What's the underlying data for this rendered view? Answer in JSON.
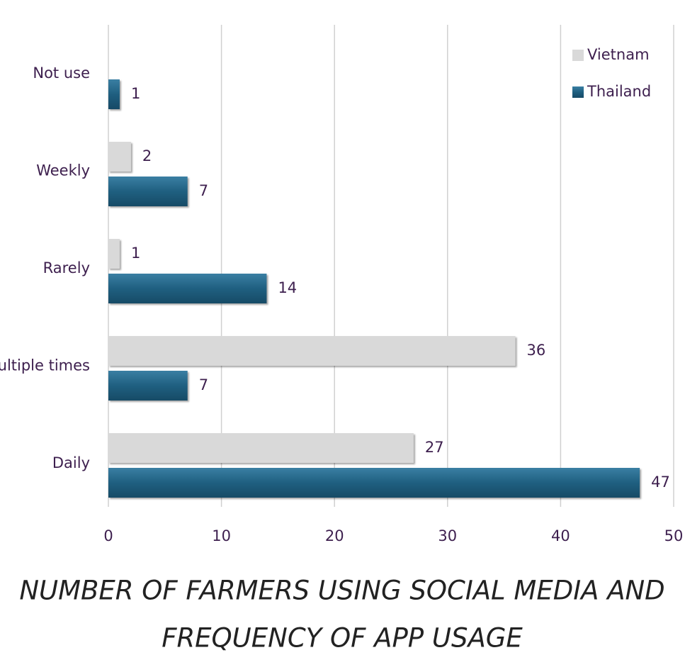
{
  "chart_data": {
    "type": "barh",
    "title": [
      "NUMBER OF FARMERS USING SOCIAL MEDIA AND",
      "FREQUENCY OF APP USAGE"
    ],
    "categories": [
      "Not use",
      "Weekly",
      "Rarely",
      "Multiple times",
      "Daily"
    ],
    "series": [
      {
        "name": "Vietnam",
        "color": "#d9d9d9",
        "values": [
          null,
          2,
          1,
          36,
          27
        ]
      },
      {
        "name": "Thailand",
        "color": "#1f5f80",
        "values": [
          1,
          7,
          14,
          7,
          47
        ]
      }
    ],
    "xlim": [
      0,
      50
    ],
    "xticks": [
      0,
      10,
      20,
      30,
      40,
      50
    ],
    "grid": true,
    "legend": "upper right"
  }
}
